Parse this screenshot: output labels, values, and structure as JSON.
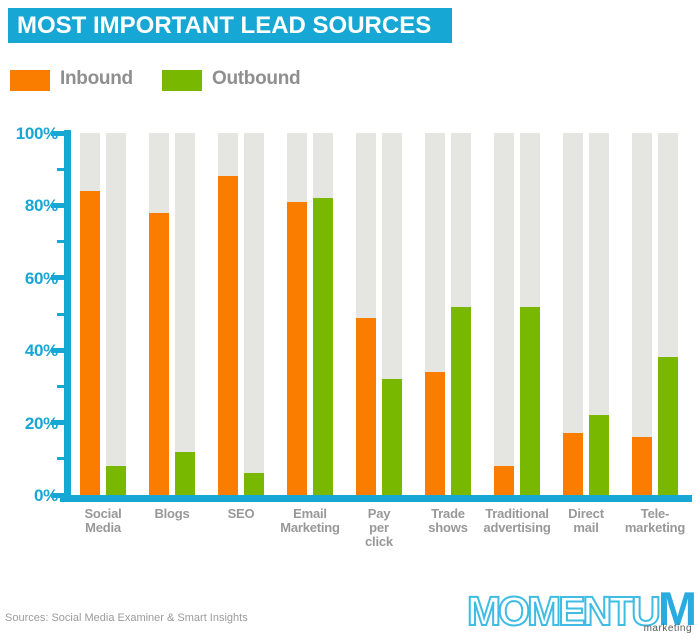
{
  "title": "MOST IMPORTANT LEAD SOURCES",
  "legend": {
    "items": [
      {
        "label": "Inbound",
        "color": "#fa7d00"
      },
      {
        "label": "Outbound",
        "color": "#79b800"
      }
    ]
  },
  "colors": {
    "accent_cyan": "#17a7d4",
    "inbound_orange": "#fa7d00",
    "outbound_green": "#79b800",
    "bar_track_gray": "#e5e6e2",
    "label_gray": "#989898"
  },
  "chart_data": {
    "type": "bar",
    "title": "MOST IMPORTANT LEAD SOURCES",
    "categories": [
      "Social Media",
      "Blogs",
      "SEO",
      "Email Marketing",
      "Pay per click",
      "Trade shows",
      "Traditional advertising",
      "Direct mail",
      "Tele-marketing"
    ],
    "category_label_lines": [
      [
        "Social",
        "Media"
      ],
      [
        "Blogs"
      ],
      [
        "SEO"
      ],
      [
        "Email",
        "Marketing"
      ],
      [
        "Pay",
        "per",
        "click"
      ],
      [
        "Trade",
        "shows"
      ],
      [
        "Traditional",
        "advertising"
      ],
      [
        "Direct",
        "mail"
      ],
      [
        "Tele-",
        "marketing"
      ]
    ],
    "series": [
      {
        "name": "Inbound",
        "color": "#fa7d00",
        "values": [
          84,
          78,
          88,
          81,
          49,
          34,
          8,
          17,
          16
        ]
      },
      {
        "name": "Outbound",
        "color": "#79b800",
        "values": [
          8,
          12,
          6,
          82,
          32,
          52,
          52,
          22,
          38
        ]
      }
    ],
    "xlabel": "",
    "ylabel": "",
    "ylim": [
      0,
      100
    ],
    "yticks": [
      0,
      20,
      40,
      60,
      80,
      100
    ],
    "ytick_labels": [
      "0%",
      "20%",
      "40%",
      "60%",
      "80%",
      "100%"
    ],
    "minor_yticks": [
      10,
      30,
      50,
      70,
      90
    ],
    "grid": false,
    "legend_position": "top-left",
    "background_tracks": true
  },
  "footer": {
    "sources": "Sources: Social Media Examiner & Smart Insights"
  },
  "logo": {
    "outline_text": "MOMENTU",
    "solid_text": "M",
    "subtext": "marketing"
  }
}
